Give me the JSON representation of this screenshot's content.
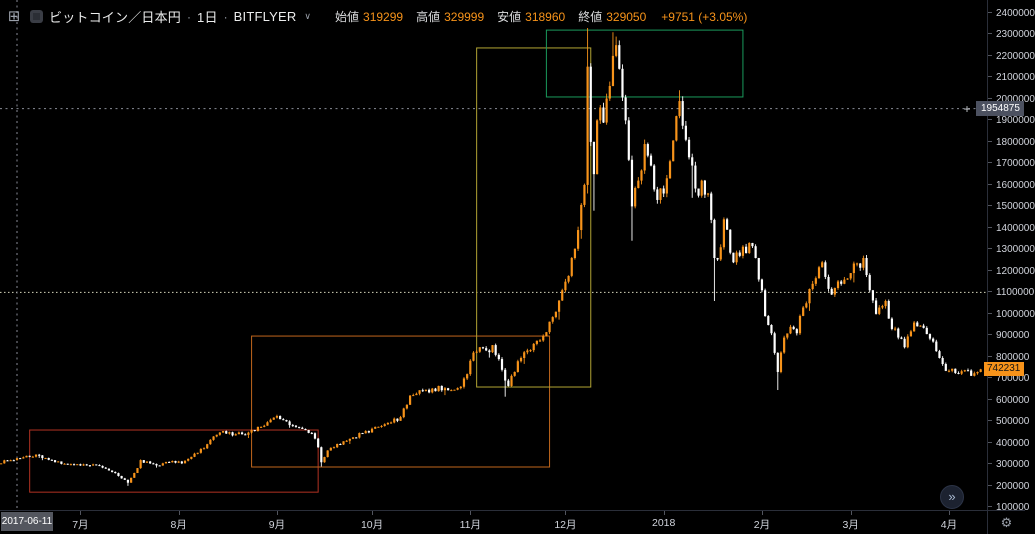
{
  "header": {
    "symbol": "ビットコイン／日本円",
    "separator": "·",
    "interval": "1日",
    "exchange": "BITFLYER",
    "exchange_chevron": "∨",
    "ohlc_fields": [
      {
        "label": "始値",
        "value": "319299"
      },
      {
        "label": "高値",
        "value": "329999"
      },
      {
        "label": "安値",
        "value": "318960"
      },
      {
        "label": "終値",
        "value": "329050"
      }
    ],
    "change_text": "+9751 (+3.05%)"
  },
  "icons": {
    "grid_icon": "⊞",
    "gear_icon": "⚙",
    "plus_icon": "+",
    "jump_latest_icon": "»"
  },
  "colors": {
    "background": "#000000",
    "up_candle": "#f7931a",
    "down_candle": "#ffffff",
    "axis_text": "#d1d4dc",
    "axis_line": "#2a2e39",
    "crosshair": "#8a8d98",
    "crosshair_label_bg": "#4c5160",
    "last_price_label_bg": "#f7931a",
    "date_label_bg": "#53565e",
    "hline": "#d8d8bd",
    "rect_red": "#b23222",
    "rect_orange": "#c0661c",
    "rect_yellow": "#b2a534",
    "rect_green": "#1a9a5c"
  },
  "price_axis": {
    "tick_min": 100000,
    "tick_max": 2400000,
    "tick_step": 100000,
    "crosshair_price": 1954875,
    "crosshair_price_text": "1954875",
    "last_price": 742231,
    "last_price_text": "742231"
  },
  "time_axis": {
    "labels": [
      {
        "text": "7月",
        "date": "2017-07-01"
      },
      {
        "text": "8月",
        "date": "2017-08-01"
      },
      {
        "text": "9月",
        "date": "2017-09-01"
      },
      {
        "text": "10月",
        "date": "2017-10-01"
      },
      {
        "text": "11月",
        "date": "2017-11-01"
      },
      {
        "text": "12月",
        "date": "2017-12-01"
      },
      {
        "text": "2018",
        "date": "2018-01-01"
      },
      {
        "text": "2月",
        "date": "2018-02-01"
      },
      {
        "text": "3月",
        "date": "2018-03-01"
      },
      {
        "text": "4月",
        "date": "2018-04-01"
      }
    ],
    "crosshair_date": "2017-06-11",
    "crosshair_date_text": "2017-06-11"
  },
  "chart_data": {
    "type": "candlestick",
    "title": "ビットコイン／日本円 · 1日 · BITFLYER",
    "grid": false,
    "x_range": [
      "2017-06-06",
      "2018-04-11"
    ],
    "y_range_visible": [
      88000,
      2460000
    ],
    "up_color": "#f7931a",
    "down_color": "#ffffff",
    "crosshair": {
      "date": "2017-06-11",
      "price": 1954875
    },
    "crosshair_candle": {
      "date": "2017-06-11",
      "open": 319299,
      "high": 329999,
      "low": 318960,
      "close": 329050,
      "change": "+9751 (+3.05%)"
    },
    "last_close": 742231,
    "anchors": [
      [
        "2017-06-06",
        305000
      ],
      [
        "2017-06-08",
        318000
      ],
      [
        "2017-06-10",
        319299
      ],
      [
        "2017-06-11",
        329050,
        329999,
        318960
      ],
      [
        "2017-06-14",
        340000
      ],
      [
        "2017-06-17",
        345000
      ],
      [
        "2017-06-20",
        330000
      ],
      [
        "2017-06-23",
        310000
      ],
      [
        "2017-06-27",
        300000
      ],
      [
        "2017-07-01",
        295000
      ],
      [
        "2017-07-05",
        300000
      ],
      [
        "2017-07-08",
        285000
      ],
      [
        "2017-07-11",
        265000
      ],
      [
        "2017-07-14",
        235000
      ],
      [
        "2017-07-16",
        215000,
        null,
        200000
      ],
      [
        "2017-07-18",
        260000
      ],
      [
        "2017-07-20",
        320000
      ],
      [
        "2017-07-23",
        305000
      ],
      [
        "2017-07-26",
        295000
      ],
      [
        "2017-07-29",
        310000
      ],
      [
        "2017-08-02",
        305000
      ],
      [
        "2017-08-06",
        350000
      ],
      [
        "2017-08-09",
        375000
      ],
      [
        "2017-08-12",
        430000
      ],
      [
        "2017-08-15",
        455000
      ],
      [
        "2017-08-18",
        435000
      ],
      [
        "2017-08-21",
        440000
      ],
      [
        "2017-08-24",
        460000
      ],
      [
        "2017-08-28",
        480000
      ],
      [
        "2017-09-01",
        525000
      ],
      [
        "2017-09-04",
        500000
      ],
      [
        "2017-09-06",
        480000
      ],
      [
        "2017-09-09",
        465000
      ],
      [
        "2017-09-12",
        445000
      ],
      [
        "2017-09-14",
        380000
      ],
      [
        "2017-09-15",
        310000,
        null,
        290000
      ],
      [
        "2017-09-17",
        365000
      ],
      [
        "2017-09-20",
        395000
      ],
      [
        "2017-09-23",
        410000
      ],
      [
        "2017-09-26",
        425000
      ],
      [
        "2017-09-29",
        455000
      ],
      [
        "2017-10-03",
        475000
      ],
      [
        "2017-10-07",
        495000
      ],
      [
        "2017-10-10",
        520000
      ],
      [
        "2017-10-13",
        620000
      ],
      [
        "2017-10-16",
        645000
      ],
      [
        "2017-10-19",
        635000
      ],
      [
        "2017-10-22",
        665000
      ],
      [
        "2017-10-25",
        645000
      ],
      [
        "2017-10-28",
        655000
      ],
      [
        "2017-10-31",
        720000
      ],
      [
        "2017-11-02",
        820000
      ],
      [
        "2017-11-04",
        845000
      ],
      [
        "2017-11-06",
        830000
      ],
      [
        "2017-11-08",
        855000
      ],
      [
        "2017-11-10",
        790000
      ],
      [
        "2017-11-12",
        690000,
        null,
        615000
      ],
      [
        "2017-11-13",
        665000
      ],
      [
        "2017-11-15",
        730000
      ],
      [
        "2017-11-17",
        795000
      ],
      [
        "2017-11-19",
        830000
      ],
      [
        "2017-11-22",
        875000
      ],
      [
        "2017-11-25",
        915000
      ],
      [
        "2017-11-28",
        1010000
      ],
      [
        "2017-12-01",
        1150000
      ],
      [
        "2017-12-03",
        1260000
      ],
      [
        "2017-12-05",
        1390000
      ],
      [
        "2017-12-07",
        1600000
      ],
      [
        "2017-12-08",
        2150000,
        2330000,
        1560000
      ],
      [
        "2017-12-09",
        1800000
      ],
      [
        "2017-12-10",
        1650000,
        null,
        1480000
      ],
      [
        "2017-12-11",
        1900000
      ],
      [
        "2017-12-12",
        1960000
      ],
      [
        "2017-12-13",
        1890000
      ],
      [
        "2017-12-15",
        2060000
      ],
      [
        "2017-12-16",
        2200000,
        2310000
      ],
      [
        "2017-12-17",
        2250000,
        2290000
      ],
      [
        "2017-12-18",
        2140000
      ],
      [
        "2017-12-20",
        1900000
      ],
      [
        "2017-12-22",
        1500000,
        null,
        1340000
      ],
      [
        "2017-12-24",
        1620000
      ],
      [
        "2017-12-26",
        1790000
      ],
      [
        "2017-12-28",
        1690000
      ],
      [
        "2017-12-30",
        1530000
      ],
      [
        "2018-01-01",
        1560000
      ],
      [
        "2018-01-03",
        1710000
      ],
      [
        "2018-01-05",
        1920000
      ],
      [
        "2018-01-06",
        1990000,
        2040000
      ],
      [
        "2018-01-08",
        1810000
      ],
      [
        "2018-01-10",
        1690000,
        null,
        1540000
      ],
      [
        "2018-01-12",
        1550000
      ],
      [
        "2018-01-13",
        1620000
      ],
      [
        "2018-01-15",
        1560000
      ],
      [
        "2018-01-17",
        1260000,
        null,
        1060000
      ],
      [
        "2018-01-19",
        1310000
      ],
      [
        "2018-01-20",
        1440000
      ],
      [
        "2018-01-23",
        1240000
      ],
      [
        "2018-01-25",
        1270000
      ],
      [
        "2018-01-28",
        1330000
      ],
      [
        "2018-01-30",
        1260000
      ],
      [
        "2018-02-01",
        1110000
      ],
      [
        "2018-02-02",
        990000
      ],
      [
        "2018-02-04",
        910000
      ],
      [
        "2018-02-06",
        730000,
        null,
        646000
      ],
      [
        "2018-02-08",
        890000
      ],
      [
        "2018-02-10",
        940000
      ],
      [
        "2018-02-12",
        910000
      ],
      [
        "2018-02-14",
        1030000
      ],
      [
        "2018-02-17",
        1140000
      ],
      [
        "2018-02-20",
        1240000
      ],
      [
        "2018-02-23",
        1090000
      ],
      [
        "2018-02-26",
        1140000
      ],
      [
        "2018-03-01",
        1190000
      ],
      [
        "2018-03-05",
        1260000
      ],
      [
        "2018-03-07",
        1110000
      ],
      [
        "2018-03-09",
        1000000
      ],
      [
        "2018-03-12",
        1060000
      ],
      [
        "2018-03-14",
        930000
      ],
      [
        "2018-03-16",
        890000
      ],
      [
        "2018-03-18",
        845000
      ],
      [
        "2018-03-21",
        960000
      ],
      [
        "2018-03-24",
        935000
      ],
      [
        "2018-03-26",
        885000
      ],
      [
        "2018-03-29",
        795000
      ],
      [
        "2018-03-31",
        735000
      ],
      [
        "2018-04-02",
        745000
      ],
      [
        "2018-04-04",
        722000
      ],
      [
        "2018-04-06",
        738000
      ],
      [
        "2018-04-08",
        712000
      ],
      [
        "2018-04-10",
        730000
      ],
      [
        "2018-04-11",
        742231
      ]
    ],
    "drawings": {
      "rectangles": [
        {
          "name": "red-rectangle",
          "from_date": "2017-06-15",
          "to_date": "2017-09-14",
          "price_low": 171000,
          "price_high": 460000,
          "color_key": "rect_red"
        },
        {
          "name": "orange-rectangle",
          "from_date": "2017-08-24",
          "to_date": "2017-11-26",
          "price_low": 288000,
          "price_high": 897000,
          "color_key": "rect_orange"
        },
        {
          "name": "yellow-rectangle",
          "from_date": "2017-11-03",
          "to_date": "2017-12-09",
          "price_low": 660000,
          "price_high": 2237000,
          "color_key": "rect_yellow"
        },
        {
          "name": "green-rectangle",
          "from_date": "2017-11-25",
          "to_date": "2018-01-26",
          "price_low": 2009000,
          "price_high": 2320000,
          "color_key": "rect_green"
        }
      ],
      "horizontal_line": {
        "price": 1100000,
        "style": "dashed",
        "color_key": "hline"
      }
    }
  }
}
